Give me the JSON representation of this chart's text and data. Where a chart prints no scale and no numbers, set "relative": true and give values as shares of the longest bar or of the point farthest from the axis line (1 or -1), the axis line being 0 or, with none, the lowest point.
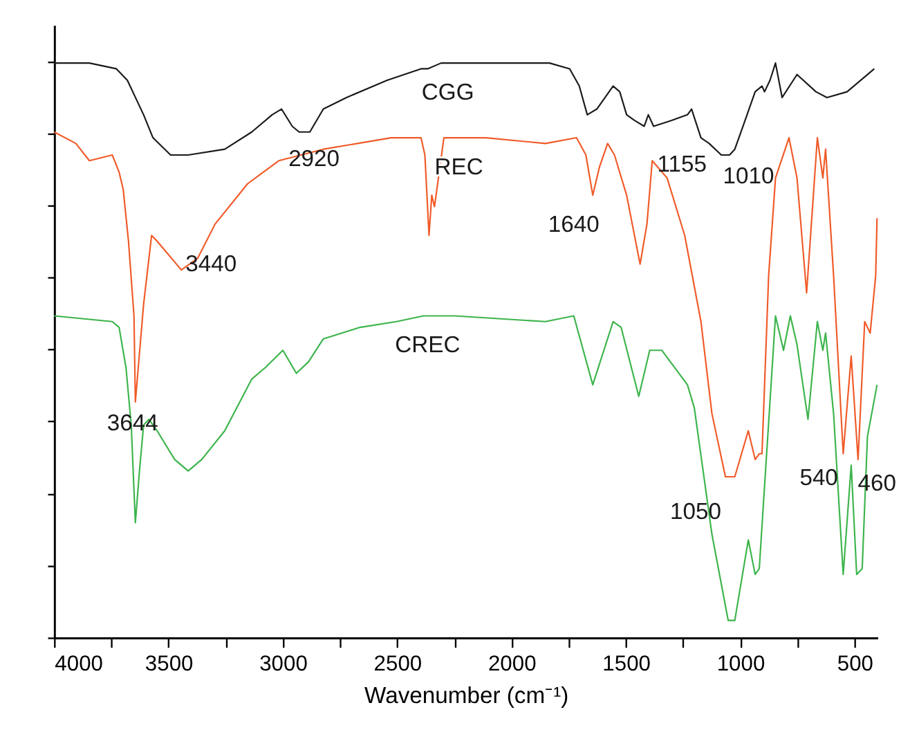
{
  "chart_data": {
    "type": "line",
    "relative": true,
    "xlabel": "Wavenumber (cm⁻¹)",
    "xlim": [
      4000,
      400
    ],
    "xticks": [
      4000,
      {
        "value": 3750,
        "label": null
      },
      3500,
      {
        "value": 3250,
        "label": null
      },
      3000,
      {
        "value": 2750,
        "label": null
      },
      2500,
      {
        "value": 2250,
        "label": null
      },
      2000,
      {
        "value": 1750,
        "label": null
      },
      1500,
      {
        "value": 1250,
        "label": null
      },
      1000,
      {
        "value": 750,
        "label": null
      },
      500
    ],
    "grid": false,
    "tick_labels": "x",
    "line_style": "solid",
    "marker": "none",
    "series": [
      {
        "name": "CGG",
        "color": "#1a1a1a",
        "x": [
          4000,
          3846,
          3728,
          3680,
          3609,
          3568,
          3491,
          3414,
          3254,
          3136,
          3047,
          3006,
          2959,
          2929,
          2882,
          2823,
          2722,
          2544,
          2396,
          2367,
          2308,
          2160,
          1834,
          1746,
          1704,
          1669,
          1627,
          1556,
          1527,
          1497,
          1462,
          1420,
          1402,
          1379,
          1302,
          1231,
          1213,
          1172,
          1136,
          1083,
          1047,
          1024,
          988,
          935,
          905,
          894,
          870,
          846,
          817,
          752,
          669,
          621,
          533,
          414
        ],
        "values": [
          1.0,
          1.0,
          0.99,
          0.97,
          0.91,
          0.87,
          0.84,
          0.84,
          0.85,
          0.88,
          0.91,
          0.92,
          0.89,
          0.88,
          0.88,
          0.92,
          0.94,
          0.97,
          0.99,
          0.99,
          1.0,
          1.0,
          1.0,
          0.99,
          0.96,
          0.91,
          0.92,
          0.96,
          0.95,
          0.91,
          0.9,
          0.89,
          0.91,
          0.89,
          0.9,
          0.91,
          0.92,
          0.87,
          0.86,
          0.84,
          0.84,
          0.85,
          0.89,
          0.95,
          0.96,
          0.95,
          0.97,
          1.0,
          0.94,
          0.98,
          0.95,
          0.94,
          0.95,
          0.99
        ]
      },
      {
        "name": "REC",
        "color": "#f05a28",
        "x": [
          4000,
          3905,
          3846,
          3746,
          3716,
          3698,
          3675,
          3651,
          3645,
          3609,
          3574,
          3550,
          3444,
          3373,
          3296,
          3154,
          3018,
          2823,
          2527,
          2396,
          2379,
          2361,
          2349,
          2337,
          2296,
          2112,
          1852,
          1716,
          1675,
          1645,
          1615,
          1580,
          1550,
          1497,
          1438,
          1408,
          1385,
          1320,
          1243,
          1172,
          1124,
          1065,
          1024,
          965,
          935,
          917,
          905,
          876,
          846,
          787,
          752,
          710,
          663,
          639,
          627,
          592,
          550,
          515,
          485,
          456,
          432,
          408,
          402
        ],
        "values": [
          0.88,
          0.86,
          0.83,
          0.84,
          0.81,
          0.78,
          0.69,
          0.56,
          0.41,
          0.58,
          0.7,
          0.69,
          0.64,
          0.66,
          0.72,
          0.79,
          0.83,
          0.85,
          0.87,
          0.87,
          0.84,
          0.7,
          0.77,
          0.75,
          0.87,
          0.87,
          0.86,
          0.87,
          0.84,
          0.77,
          0.82,
          0.86,
          0.84,
          0.77,
          0.65,
          0.72,
          0.83,
          0.8,
          0.7,
          0.55,
          0.39,
          0.28,
          0.28,
          0.36,
          0.31,
          0.32,
          0.32,
          0.63,
          0.8,
          0.87,
          0.8,
          0.6,
          0.87,
          0.8,
          0.85,
          0.63,
          0.32,
          0.49,
          0.31,
          0.55,
          0.53,
          0.63,
          0.73
        ]
      },
      {
        "name": "CREC",
        "color": "#3cb44b",
        "x": [
          4000,
          3746,
          3716,
          3686,
          3663,
          3645,
          3627,
          3609,
          3586,
          3550,
          3473,
          3414,
          3355,
          3254,
          3136,
          3077,
          3000,
          2941,
          2888,
          2823,
          2663,
          2503,
          2385,
          2249,
          1852,
          1728,
          1645,
          1556,
          1521,
          1444,
          1396,
          1343,
          1231,
          1201,
          1124,
          1053,
          1024,
          965,
          935,
          917,
          846,
          811,
          781,
          752,
          704,
          663,
          639,
          627,
          592,
          550,
          515,
          491,
          467,
          444,
          402
        ],
        "values": [
          0.56,
          0.55,
          0.54,
          0.47,
          0.37,
          0.2,
          0.29,
          0.37,
          0.38,
          0.36,
          0.31,
          0.29,
          0.31,
          0.36,
          0.45,
          0.47,
          0.5,
          0.46,
          0.48,
          0.52,
          0.54,
          0.55,
          0.56,
          0.56,
          0.55,
          0.56,
          0.44,
          0.55,
          0.54,
          0.42,
          0.5,
          0.5,
          0.44,
          0.4,
          0.18,
          0.03,
          0.03,
          0.17,
          0.11,
          0.12,
          0.56,
          0.5,
          0.56,
          0.51,
          0.38,
          0.55,
          0.5,
          0.53,
          0.39,
          0.11,
          0.3,
          0.11,
          0.12,
          0.35,
          0.44
        ]
      }
    ],
    "annotations": [
      {
        "text": "2920",
        "x": 2929,
        "y": 0.88
      },
      {
        "text": "3440",
        "x": 3444,
        "y": 0.64
      },
      {
        "text": "1640",
        "x": 1645,
        "y": 0.77
      },
      {
        "text": "1155",
        "x": 1172,
        "y": 0.87
      },
      {
        "text": "1010",
        "x": 1047,
        "y": 0.84
      },
      {
        "text": "3644",
        "x": 3645,
        "y": 0.41
      },
      {
        "text": "1050",
        "x": 1065,
        "y": 0.28
      },
      {
        "text": "540",
        "x": 550,
        "y": 0.32
      },
      {
        "text": "460",
        "x": 485,
        "y": 0.31
      }
    ]
  }
}
